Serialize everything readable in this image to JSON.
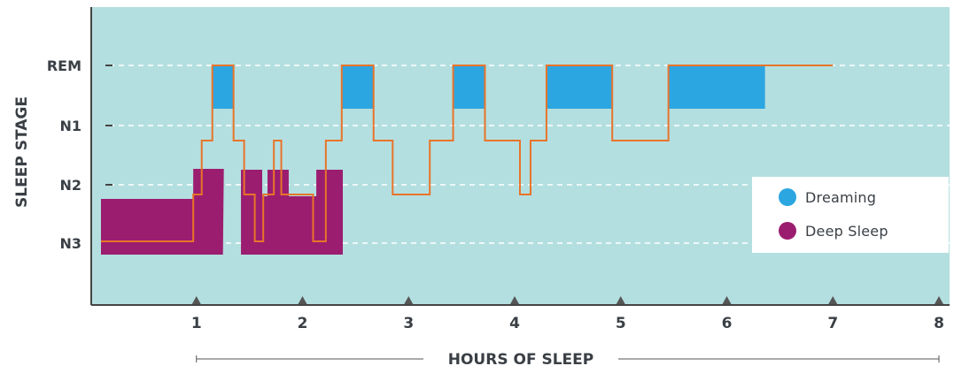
{
  "chart_data": {
    "type": "area",
    "xlabel": "HOURS OF SLEEP",
    "ylabel": "SLEEP STAGE",
    "x_ticks": [
      1,
      2,
      3,
      4,
      5,
      6,
      7,
      8
    ],
    "x_range": [
      0,
      8
    ],
    "y_categories": [
      "REM",
      "N1",
      "N2",
      "N3"
    ],
    "grid": "dashed horizontal at each stage",
    "background_color": "#b4dfe0",
    "line_color": "#e8742a",
    "legend": {
      "position": "right",
      "items": [
        {
          "label": "Dreaming",
          "color": "#2ba6e1"
        },
        {
          "label": "Deep Sleep",
          "color": "#9b1d6f"
        }
      ]
    },
    "hypnogram_steps": [
      {
        "x": 0.1,
        "stage": "N3"
      },
      {
        "x": 0.97,
        "stage": "N2"
      },
      {
        "x": 1.05,
        "stage": "N1"
      },
      {
        "x": 1.15,
        "stage": "REM"
      },
      {
        "x": 1.35,
        "stage": "N1"
      },
      {
        "x": 1.45,
        "stage": "N2"
      },
      {
        "x": 1.55,
        "stage": "N3"
      },
      {
        "x": 1.63,
        "stage": "N2"
      },
      {
        "x": 1.73,
        "stage": "N1"
      },
      {
        "x": 1.8,
        "stage": "N2"
      },
      {
        "x": 2.1,
        "stage": "N3"
      },
      {
        "x": 2.22,
        "stage": "N1"
      },
      {
        "x": 2.37,
        "stage": "REM"
      },
      {
        "x": 2.67,
        "stage": "N1"
      },
      {
        "x": 2.85,
        "stage": "N2"
      },
      {
        "x": 3.2,
        "stage": "N1"
      },
      {
        "x": 3.42,
        "stage": "REM"
      },
      {
        "x": 3.72,
        "stage": "N1"
      },
      {
        "x": 4.05,
        "stage": "N2"
      },
      {
        "x": 4.15,
        "stage": "N1"
      },
      {
        "x": 4.3,
        "stage": "REM"
      },
      {
        "x": 4.92,
        "stage": "N1"
      },
      {
        "x": 5.45,
        "stage": "REM"
      },
      {
        "x": 7.0,
        "stage": "REM"
      }
    ],
    "dreaming_periods": [
      [
        1.15,
        1.35
      ],
      [
        2.37,
        2.67
      ],
      [
        3.42,
        3.72
      ],
      [
        4.3,
        4.92
      ],
      [
        5.45,
        6.36
      ]
    ],
    "deep_sleep_periods": [
      [
        0.1,
        1.25
      ],
      [
        1.42,
        2.38
      ]
    ]
  }
}
